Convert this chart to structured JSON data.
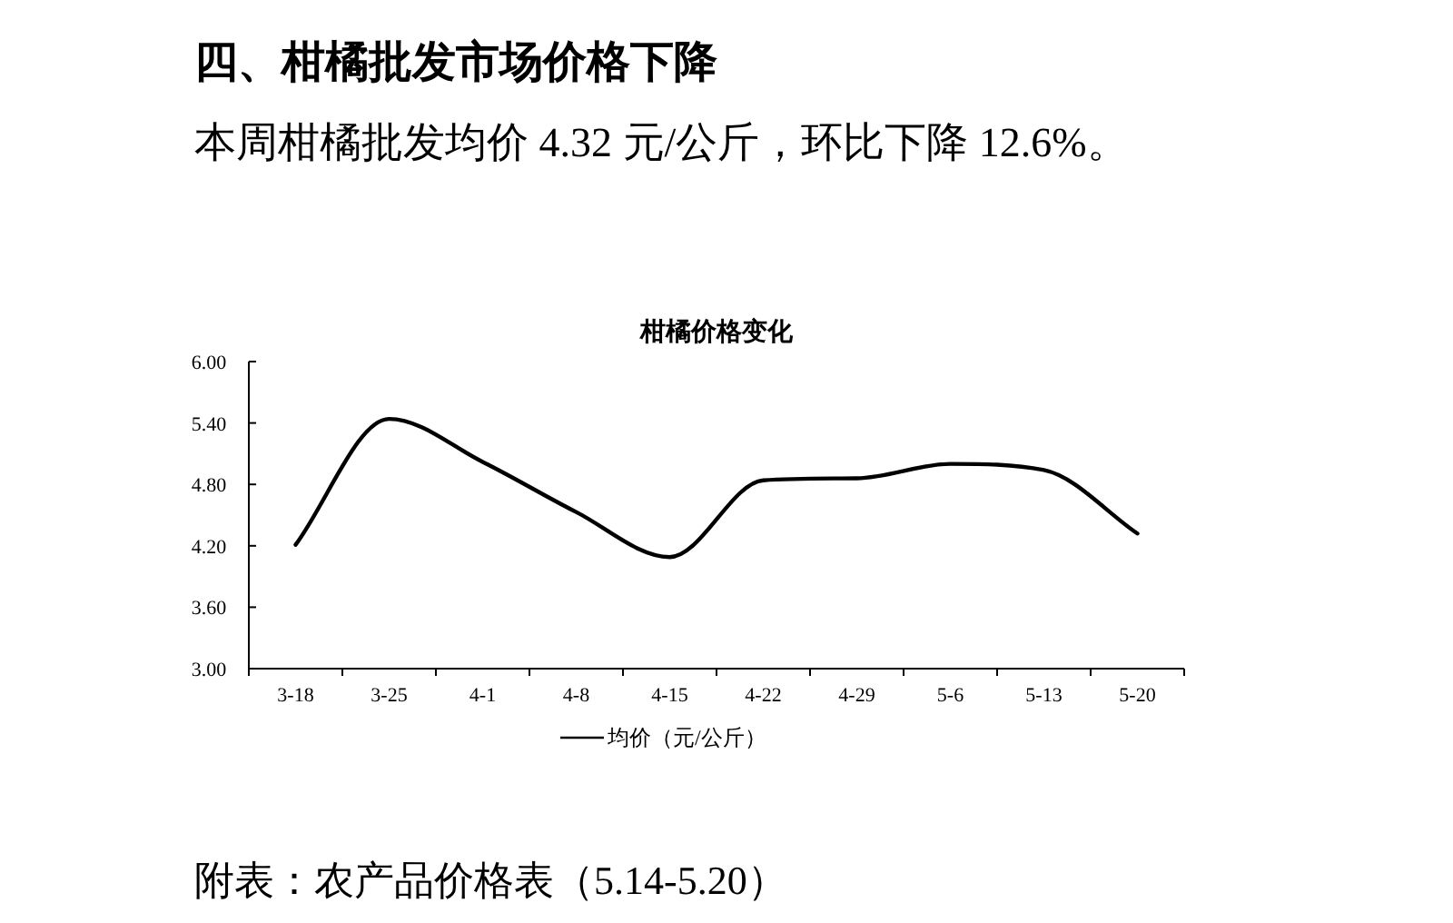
{
  "chart_data": {
    "type": "line",
    "title": "柑橘价格变化",
    "annotations": [
      "四、柑橘批发市场价格下降",
      "本周柑橘批发均价 4.32 元/公斤，环比下降 12.6%。",
      "附表：农产品价格表（5.14-5.20）"
    ],
    "categories": [
      "3-18",
      "3-25",
      "4-1",
      "4-8",
      "4-15",
      "4-22",
      "4-29",
      "5-6",
      "5-13",
      "5-20"
    ],
    "series": [
      {
        "name": "均价（元/公斤）",
        "color": "#000000",
        "values": [
          4.21,
          5.44,
          5.02,
          4.53,
          4.09,
          4.84,
          4.86,
          5.0,
          4.94,
          4.32
        ]
      }
    ],
    "ylim": [
      3,
      6
    ],
    "yticks": [
      {
        "value": 3,
        "label": "3.00"
      },
      {
        "value": 3.6,
        "label": "3.60"
      },
      {
        "value": 4.2,
        "label": "4.20"
      },
      {
        "value": 4.8,
        "label": "4.80"
      },
      {
        "value": 5.4,
        "label": "5.40"
      },
      {
        "value": 6,
        "label": "6.00"
      }
    ],
    "legend": "bottom",
    "grid": false,
    "marker": "none",
    "line_style": "solid"
  }
}
